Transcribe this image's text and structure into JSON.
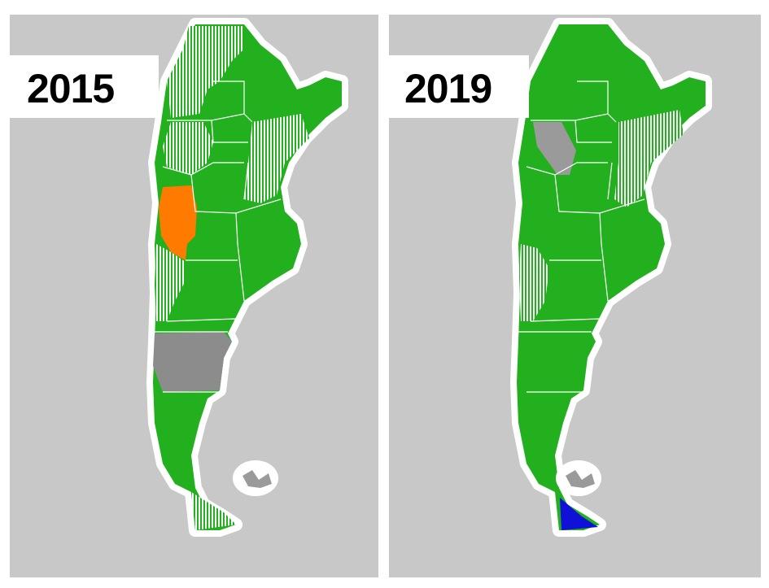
{
  "panels": [
    {
      "title": "2015"
    },
    {
      "title": "2019"
    }
  ]
}
